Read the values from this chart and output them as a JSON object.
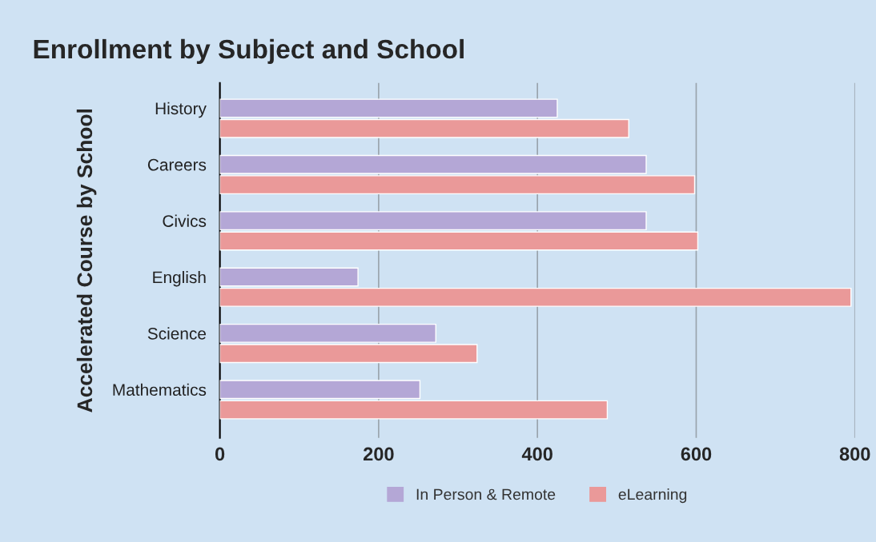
{
  "chart_data": {
    "type": "bar",
    "orientation": "horizontal",
    "title": "Enrollment by Subject and School",
    "ylabel": "Accelerated Course by School",
    "categories": [
      "History",
      "Careers",
      "Civics",
      "English",
      "Science",
      "Mathematics"
    ],
    "series": [
      {
        "name": "In Person & Remote",
        "color": "#b4a7d6",
        "values": [
          425,
          537,
          537,
          174,
          272,
          252
        ]
      },
      {
        "name": "eLearning",
        "color": "#ea9999",
        "values": [
          515,
          598,
          602,
          795,
          324,
          488
        ]
      }
    ],
    "xlim": [
      0,
      800
    ],
    "xticks": [
      0,
      200,
      400,
      600,
      800
    ],
    "grid": "x",
    "legend": "bottom"
  }
}
